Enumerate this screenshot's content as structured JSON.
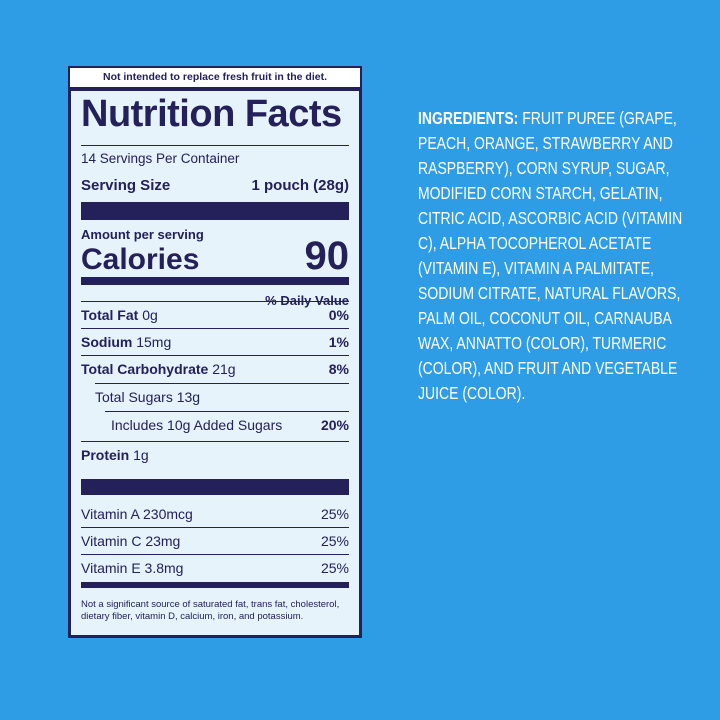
{
  "banner": "Not intended to replace fresh fruit in the diet.",
  "label": {
    "title": "Nutrition Facts",
    "servings": "14 Servings Per Container",
    "serving_size_label": "Serving Size",
    "serving_size_value": "1 pouch (28g)",
    "amount_per_serving": "Amount per serving",
    "calories_label": "Calories",
    "calories_value": "90",
    "daily_value_header": "% Daily Value",
    "rows": [
      {
        "name": "Total Fat",
        "amount": "0g",
        "dv": "0%"
      },
      {
        "name": "Sodium",
        "amount": "15mg",
        "dv": "1%"
      },
      {
        "name": "Total Carbohydrate",
        "amount": "21g",
        "dv": "8%"
      },
      {
        "text": "Total Sugars 13g"
      },
      {
        "text": "Includes 10g Added Sugars",
        "dv": "20%"
      },
      {
        "name": "Protein",
        "amount": "1g"
      }
    ],
    "vitamins": [
      {
        "name": "Vitamin A 230mcg",
        "dv": "25%"
      },
      {
        "name": "Vitamin C 23mg",
        "dv": "25%"
      },
      {
        "name": "Vitamin E 3.8mg",
        "dv": "25%"
      }
    ],
    "footnote": "Not a significant source of saturated fat, trans fat, cholesterol, dietary fiber, vitamin D, calcium, iron, and potassium."
  },
  "ingredients": {
    "heading": "INGREDIENTS:",
    "text": "FRUIT PUREE (GRAPE, PEACH, ORANGE, STRAWBERRY AND RASPBERRY), CORN SYRUP, SUGAR, MODIFIED CORN STARCH, GELATIN, CITRIC ACID, ASCORBIC ACID (VITAMIN C), ALPHA TOCOPHEROL ACETATE (VITAMIN E), VITAMIN A PALMITATE, SODIUM CITRATE, NATURAL FLAVORS, PALM OIL, COCONUT OIL, CARNAUBA WAX, ANNATTO (COLOR), TURMERIC (COLOR), AND FRUIT AND VEGETABLE JUICE (COLOR)."
  }
}
